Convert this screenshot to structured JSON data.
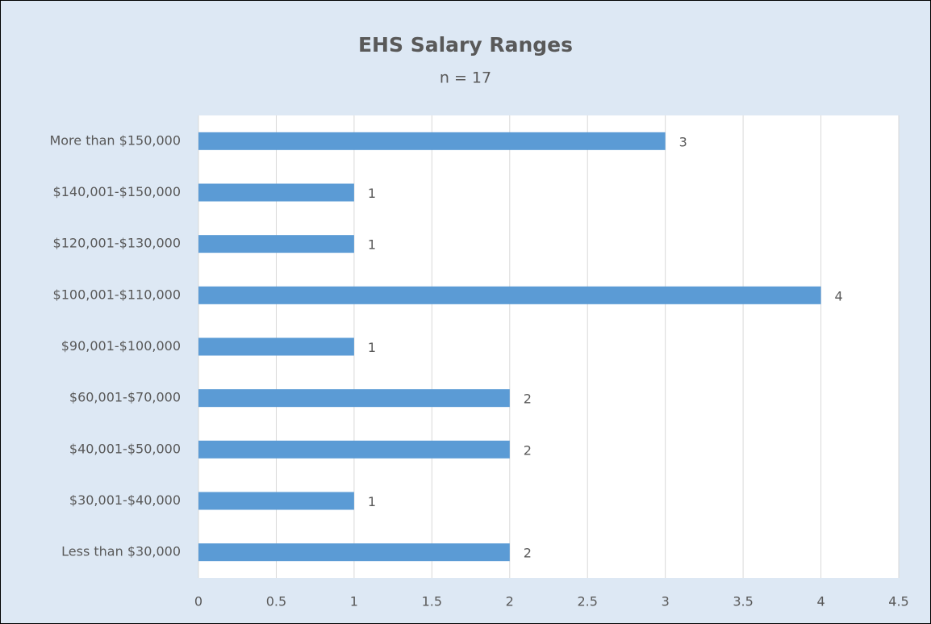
{
  "chart_data": {
    "type": "bar",
    "orientation": "horizontal",
    "title": "EHS Salary Ranges",
    "subtitle": "n = 17",
    "categories": [
      "More than $150,000",
      "$140,001-$150,000",
      "$120,001-$130,000",
      "$100,001-$110,000",
      "$90,001-$100,000",
      "$60,001-$70,000",
      "$40,001-$50,000",
      "$30,001-$40,000",
      "Less than $30,000"
    ],
    "values": [
      3,
      1,
      1,
      4,
      1,
      2,
      2,
      1,
      2
    ],
    "color": "#5b9bd5",
    "xlim": [
      0,
      4.5
    ],
    "xticks": [
      0,
      0.5,
      1,
      1.5,
      2,
      2.5,
      3,
      3.5,
      4,
      4.5
    ],
    "grid": true
  }
}
